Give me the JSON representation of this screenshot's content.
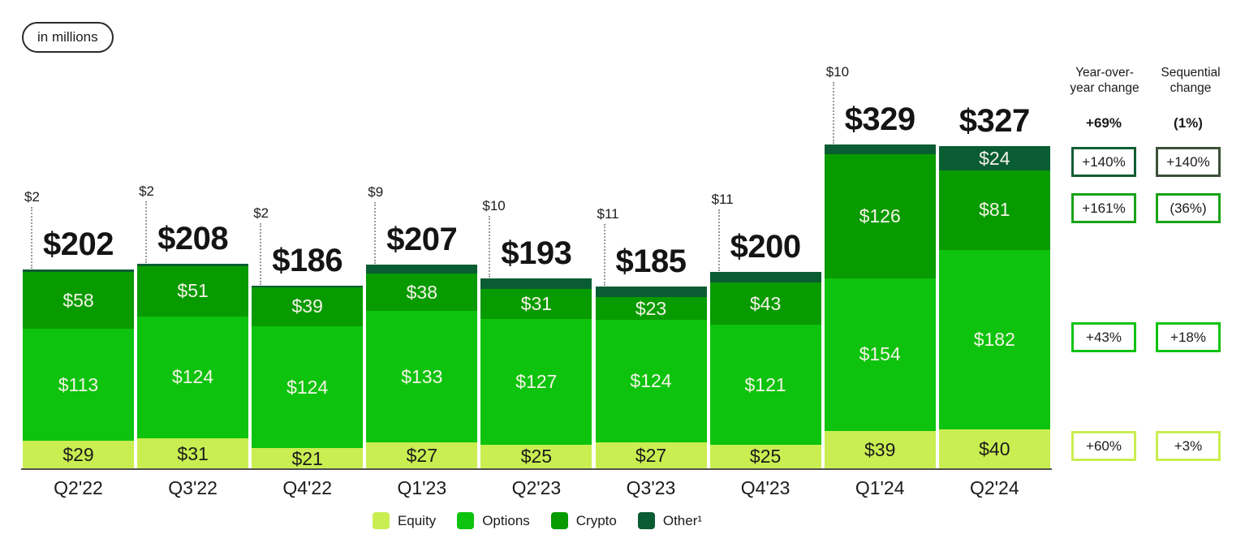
{
  "badge": {
    "label": "in millions"
  },
  "chart_data": {
    "type": "bar",
    "subtype": "stacked",
    "unit_note": "in millions",
    "value_prefix": "$",
    "categories": [
      "Q2'22",
      "Q3'22",
      "Q4'22",
      "Q1'23",
      "Q2'23",
      "Q3'23",
      "Q4'23",
      "Q1'24",
      "Q2'24"
    ],
    "series": [
      {
        "name": "Equity",
        "color": "#c9ee52",
        "label_color": "#1b1b1b",
        "values": [
          29,
          31,
          21,
          27,
          25,
          27,
          25,
          39,
          40
        ]
      },
      {
        "name": "Options",
        "color": "#0dc30d",
        "label_color": "#f5f3e7",
        "values": [
          113,
          124,
          124,
          133,
          127,
          124,
          121,
          154,
          182
        ]
      },
      {
        "name": "Crypto",
        "color": "#089b00",
        "label_color": "#f5f3e7",
        "values": [
          58,
          51,
          39,
          38,
          31,
          23,
          43,
          126,
          81
        ]
      },
      {
        "name": "Other",
        "color": "#0a5c33",
        "label_color": "#f5f3e7",
        "values": [
          2,
          2,
          2,
          9,
          10,
          11,
          11,
          10,
          24
        ]
      }
    ],
    "totals": [
      202,
      208,
      186,
      207,
      193,
      185,
      200,
      329,
      327
    ],
    "ylim": [
      0,
      329
    ],
    "grid": false,
    "legend_position": "bottom"
  },
  "legend": {
    "items": [
      {
        "label": "Equity",
        "color": "#c9ee52"
      },
      {
        "label": "Options",
        "color": "#0dc30d"
      },
      {
        "label": "Crypto",
        "color": "#089b00"
      },
      {
        "label": "Other¹",
        "color": "#0a5c33"
      }
    ]
  },
  "changes": {
    "yoy_header": "Year-over-\nyear change",
    "seq_header": "Sequential\nchange",
    "total_row": {
      "yoy": "+69%",
      "seq": "(1%)"
    },
    "rows": [
      {
        "series": "Other",
        "yoy": "+140%",
        "seq": "+140%",
        "yoy_border": "#115e33",
        "seq_border": "#3c5138"
      },
      {
        "series": "Crypto",
        "yoy": "+161%",
        "seq": "(36%)",
        "yoy_border": "#17a317",
        "seq_border": "#17a317"
      },
      {
        "series": "Options",
        "yoy": "+43%",
        "seq": "+18%",
        "yoy_border": "#0dc30d",
        "seq_border": "#0dc30d"
      },
      {
        "series": "Equity",
        "yoy": "+60%",
        "seq": "+3%",
        "yoy_border": "#c9ee52",
        "seq_border": "#c9ee52"
      }
    ]
  }
}
